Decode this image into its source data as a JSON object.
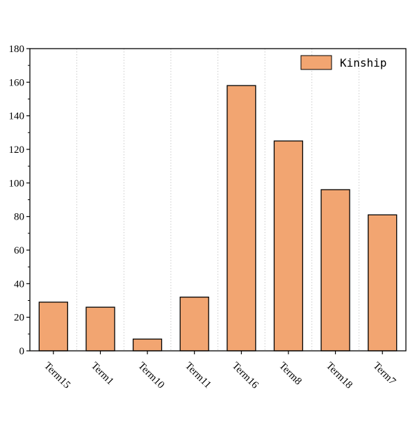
{
  "chart_data": {
    "type": "bar",
    "categories": [
      "Term15",
      "Term1",
      "Term10",
      "Term11",
      "Term16",
      "Term8",
      "Term18",
      "Term7"
    ],
    "series": [
      {
        "name": "Kinship",
        "values": [
          29,
          26,
          7,
          32,
          158,
          125,
          96,
          81
        ]
      }
    ],
    "ylim": [
      0,
      180
    ],
    "yticks": [
      0,
      20,
      40,
      60,
      80,
      100,
      120,
      140,
      160,
      180
    ],
    "grid": "vertical dotted",
    "legend_position": "top-right",
    "bar_color": "#F2A571",
    "edge_color": "#000000"
  }
}
